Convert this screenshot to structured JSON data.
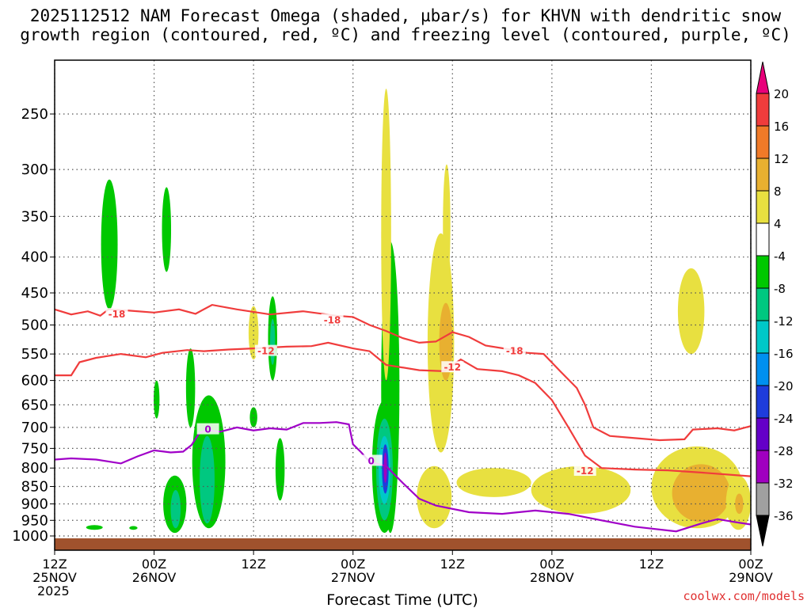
{
  "chart_data": {
    "type": "heatmap",
    "title_line1": "2025112512 NAM Forecast Omega (shaded, µbar/s) for KHVN with dendritic snow",
    "title_line2": "growth region (contoured, red, ºC) and freezing level (contoured, purple, ºC)",
    "xlabel": "Forecast Time (UTC)",
    "ylabel": "",
    "credit": "coolwx.com/models",
    "x_ticks": [
      {
        "h": 0,
        "line1": "12Z",
        "line2": "25NOV",
        "line3": "2025"
      },
      {
        "h": 12,
        "line1": "00Z",
        "line2": "26NOV",
        "line3": ""
      },
      {
        "h": 24,
        "line1": "12Z",
        "line2": "",
        "line3": ""
      },
      {
        "h": 36,
        "line1": "00Z",
        "line2": "27NOV",
        "line3": ""
      },
      {
        "h": 48,
        "line1": "12Z",
        "line2": "",
        "line3": ""
      },
      {
        "h": 60,
        "line1": "00Z",
        "line2": "28NOV",
        "line3": ""
      },
      {
        "h": 72,
        "line1": "12Z",
        "line2": "",
        "line3": ""
      },
      {
        "h": 84,
        "line1": "00Z",
        "line2": "29NOV",
        "line3": ""
      }
    ],
    "x_range": [
      0,
      84
    ],
    "y_ticks": [
      250,
      300,
      350,
      400,
      450,
      500,
      550,
      600,
      650,
      700,
      750,
      800,
      850,
      900,
      950,
      1000
    ],
    "y_range_hpa": [
      200,
      1030
    ],
    "colorbar": {
      "labels": [
        "20",
        "16",
        "12",
        "8",
        "4",
        "-4",
        "-8",
        "-12",
        "-16",
        "-20",
        "-24",
        "-28",
        "-32",
        "-36"
      ],
      "colors": [
        "#e8007a",
        "#f03c3c",
        "#f07a28",
        "#e8b030",
        "#e8e040",
        "#ffffff",
        "#00c800",
        "#00c880",
        "#00c8c8",
        "#0090f0",
        "#1e3cdc",
        "#6400c8",
        "#a000c0",
        "#a0a0a0",
        "#000000"
      ]
    },
    "omega_regions": [
      {
        "value": -6,
        "t": 6.6,
        "p_top": 310,
        "p_bot": 475,
        "halfwidth": 1.0
      },
      {
        "value": -6,
        "t": 13.5,
        "p_top": 318,
        "p_bot": 420,
        "halfwidth": 0.55
      },
      {
        "value": -6,
        "t": 12.3,
        "p_top": 600,
        "p_bot": 680,
        "halfwidth": 0.35
      },
      {
        "value": -6,
        "t": 16.4,
        "p_top": 540,
        "p_bot": 700,
        "halfwidth": 0.55
      },
      {
        "value": -6,
        "t": 18.6,
        "p_top": 630,
        "p_bot": 975,
        "halfwidth": 2.0
      },
      {
        "value": -10,
        "t": 18.4,
        "p_top": 720,
        "p_bot": 960,
        "halfwidth": 0.9
      },
      {
        "value": -6,
        "t": 14.5,
        "p_top": 820,
        "p_bot": 990,
        "halfwidth": 1.4
      },
      {
        "value": -10,
        "t": 14.6,
        "p_top": 860,
        "p_bot": 975,
        "halfwidth": 0.6
      },
      {
        "value": -6,
        "t": 26.3,
        "p_top": 455,
        "p_bot": 600,
        "halfwidth": 0.55
      },
      {
        "value": -10,
        "t": 26.3,
        "p_top": 490,
        "p_bot": 570,
        "halfwidth": 0.3
      },
      {
        "value": -6,
        "t": 27.2,
        "p_top": 725,
        "p_bot": 890,
        "halfwidth": 0.55
      },
      {
        "value": -6,
        "t": 24.0,
        "p_top": 655,
        "p_bot": 700,
        "halfwidth": 0.45
      },
      {
        "value": -6,
        "t": 40.5,
        "p_top": 380,
        "p_bot": 990,
        "halfwidth": 1.1
      },
      {
        "value": -6,
        "t": 39.8,
        "p_top": 640,
        "p_bot": 990,
        "halfwidth": 1.5
      },
      {
        "value": -10,
        "t": 39.8,
        "p_top": 680,
        "p_bot": 950,
        "halfwidth": 1.0
      },
      {
        "value": -14,
        "t": 39.8,
        "p_top": 720,
        "p_bot": 900,
        "halfwidth": 0.7
      },
      {
        "value": -20,
        "t": 39.9,
        "p_top": 740,
        "p_bot": 870,
        "halfwidth": 0.4
      },
      {
        "value": -28,
        "t": 39.9,
        "p_top": 760,
        "p_bot": 840,
        "halfwidth": 0.2
      },
      {
        "value": -6,
        "t": 4.8,
        "p_top": 965,
        "p_bot": 980,
        "halfwidth": 1.0
      },
      {
        "value": -6,
        "t": 9.5,
        "p_top": 968,
        "p_bot": 980,
        "halfwidth": 0.5
      },
      {
        "value": 6,
        "t": 24.0,
        "p_top": 470,
        "p_bot": 560,
        "halfwidth": 0.6
      },
      {
        "value": 6,
        "t": 40.0,
        "p_top": 230,
        "p_bot": 600,
        "halfwidth": 0.6
      },
      {
        "value": 6,
        "t": 47.3,
        "p_top": 295,
        "p_bot": 440,
        "halfwidth": 0.45
      },
      {
        "value": 6,
        "t": 46.6,
        "p_top": 370,
        "p_bot": 760,
        "halfwidth": 1.6
      },
      {
        "value": 10,
        "t": 47.2,
        "p_top": 465,
        "p_bot": 600,
        "halfwidth": 0.8
      },
      {
        "value": 6,
        "t": 45.8,
        "p_top": 795,
        "p_bot": 975,
        "halfwidth": 2.1
      },
      {
        "value": 6,
        "t": 53.0,
        "p_top": 800,
        "p_bot": 880,
        "halfwidth": 4.5
      },
      {
        "value": 6,
        "t": 63.5,
        "p_top": 795,
        "p_bot": 930,
        "halfwidth": 6.0
      },
      {
        "value": 6,
        "t": 77.5,
        "p_top": 745,
        "p_bot": 975,
        "halfwidth": 5.5
      },
      {
        "value": 10,
        "t": 78.0,
        "p_top": 790,
        "p_bot": 955,
        "halfwidth": 3.5
      },
      {
        "value": 6,
        "t": 82.5,
        "p_top": 820,
        "p_bot": 980,
        "halfwidth": 1.5
      },
      {
        "value": 10,
        "t": 82.6,
        "p_top": 870,
        "p_bot": 930,
        "halfwidth": 0.5
      },
      {
        "value": 6,
        "t": 76.8,
        "p_top": 415,
        "p_bot": 550,
        "halfwidth": 1.6
      }
    ],
    "contours": [
      {
        "name": "-18 C",
        "label": "-18",
        "color": "#f03c3c",
        "label_at": [
          [
            7.5,
            483
          ],
          [
            33.5,
            492
          ],
          [
            55.5,
            545
          ]
        ],
        "points": [
          [
            0,
            475
          ],
          [
            2,
            483
          ],
          [
            4,
            478
          ],
          [
            5.5,
            485
          ],
          [
            6.5,
            475
          ],
          [
            9,
            477
          ],
          [
            12,
            480
          ],
          [
            15,
            475
          ],
          [
            17,
            482
          ],
          [
            19,
            468
          ],
          [
            22,
            475
          ],
          [
            26,
            483
          ],
          [
            30,
            478
          ],
          [
            34,
            485
          ],
          [
            36,
            487
          ],
          [
            38,
            500
          ],
          [
            40,
            510
          ],
          [
            42,
            522
          ],
          [
            44,
            530
          ],
          [
            46,
            528
          ],
          [
            48,
            512
          ],
          [
            50,
            520
          ],
          [
            52,
            535
          ],
          [
            55,
            542
          ],
          [
            57,
            548
          ],
          [
            59,
            550
          ],
          [
            61,
            582
          ],
          [
            63,
            615
          ],
          [
            64,
            650
          ],
          [
            65,
            700
          ],
          [
            67,
            720
          ],
          [
            70,
            725
          ],
          [
            73,
            730
          ],
          [
            76,
            728
          ],
          [
            77,
            705
          ],
          [
            80,
            702
          ],
          [
            82,
            707
          ],
          [
            84,
            697
          ]
        ]
      },
      {
        "name": "-12 C",
        "label": "-12",
        "color": "#f03c3c",
        "label_at": [
          [
            25.5,
            545
          ],
          [
            48,
            575
          ],
          [
            64,
            808
          ]
        ],
        "points": [
          [
            0,
            590
          ],
          [
            2,
            590
          ],
          [
            3,
            565
          ],
          [
            5,
            557
          ],
          [
            8,
            550
          ],
          [
            11,
            556
          ],
          [
            13,
            548
          ],
          [
            16,
            543
          ],
          [
            18,
            545
          ],
          [
            21,
            542
          ],
          [
            24,
            540
          ],
          [
            28,
            537
          ],
          [
            31,
            536
          ],
          [
            33,
            530
          ],
          [
            36,
            540
          ],
          [
            38,
            545
          ],
          [
            40,
            570
          ],
          [
            44,
            580
          ],
          [
            47,
            582
          ],
          [
            49,
            560
          ],
          [
            51,
            578
          ],
          [
            54,
            582
          ],
          [
            56,
            590
          ],
          [
            58,
            605
          ],
          [
            60,
            640
          ],
          [
            62,
            700
          ],
          [
            64,
            768
          ],
          [
            66,
            800
          ],
          [
            70,
            804
          ],
          [
            74,
            806
          ],
          [
            78,
            812
          ],
          [
            84,
            822
          ]
        ]
      },
      {
        "name": "0 C",
        "label": "0",
        "color": "#a000c8",
        "label_at": [
          [
            18.5,
            705
          ],
          [
            38.2,
            782
          ]
        ],
        "points": [
          [
            0,
            778
          ],
          [
            2,
            775
          ],
          [
            5,
            778
          ],
          [
            8,
            788
          ],
          [
            10,
            770
          ],
          [
            12,
            755
          ],
          [
            14,
            760
          ],
          [
            15.5,
            758
          ],
          [
            16.5,
            742
          ],
          [
            17.5,
            712
          ],
          [
            18.5,
            707
          ],
          [
            20,
            710
          ],
          [
            22,
            700
          ],
          [
            24,
            707
          ],
          [
            26,
            702
          ],
          [
            28,
            705
          ],
          [
            30,
            690
          ],
          [
            32,
            690
          ],
          [
            34,
            688
          ],
          [
            35.5,
            693
          ],
          [
            36,
            740
          ],
          [
            37,
            760
          ],
          [
            38,
            784
          ],
          [
            40,
            795
          ],
          [
            42,
            840
          ],
          [
            44,
            885
          ],
          [
            46,
            905
          ],
          [
            50,
            925
          ],
          [
            54,
            930
          ],
          [
            58,
            920
          ],
          [
            62,
            930
          ],
          [
            66,
            950
          ],
          [
            70,
            970
          ],
          [
            75,
            985
          ],
          [
            78,
            960
          ],
          [
            80,
            946
          ],
          [
            82,
            955
          ],
          [
            84,
            963
          ]
        ]
      }
    ]
  }
}
